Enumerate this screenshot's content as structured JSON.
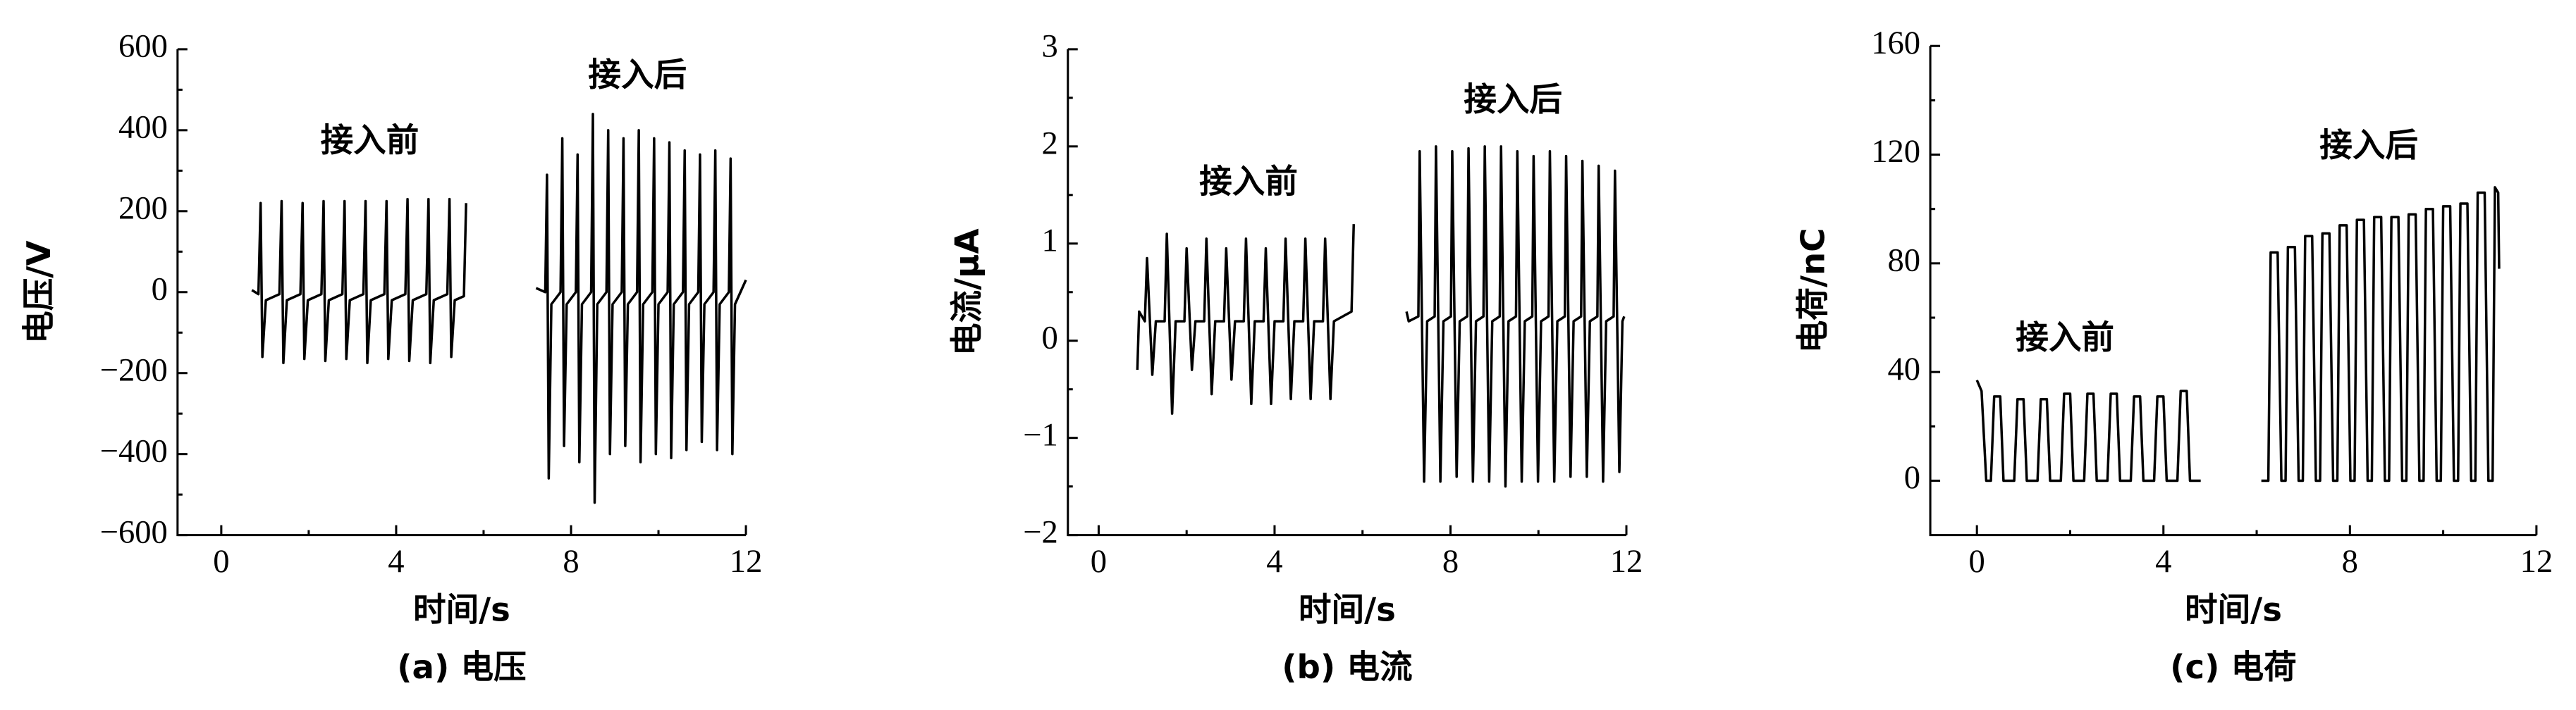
{
  "chart_data": [
    {
      "type": "line",
      "caption": "(a) 电压",
      "xlabel": "时间/s",
      "ylabel": "电压/V",
      "annotations": [
        "接入前",
        "接入后"
      ],
      "color": "#000000",
      "xlim": [
        -1,
        12
      ],
      "xticks": [
        0,
        4,
        8,
        12
      ],
      "ylim": [
        -600,
        600
      ],
      "yticks": [
        {
          "value": -600,
          "label": "−600"
        },
        {
          "value": -400,
          "label": "−400"
        },
        {
          "value": -200,
          "label": "−200"
        },
        0,
        200,
        400,
        600
      ],
      "x": [
        0.7,
        0.85,
        0.9,
        0.94,
        1.02,
        1.33,
        1.38,
        1.42,
        1.5,
        1.81,
        1.86,
        1.9,
        1.98,
        2.29,
        2.34,
        2.38,
        2.46,
        2.77,
        2.82,
        2.86,
        2.94,
        3.25,
        3.3,
        3.34,
        3.42,
        3.73,
        3.78,
        3.82,
        3.9,
        4.21,
        4.26,
        4.3,
        4.38,
        4.69,
        4.74,
        4.78,
        4.86,
        5.17,
        5.22,
        5.26,
        5.34,
        5.55,
        5.6,
        6.4,
        7.2,
        7.41,
        7.45,
        7.49,
        7.55,
        7.76,
        7.8,
        7.84,
        7.9,
        8.11,
        8.15,
        8.19,
        8.25,
        8.46,
        8.5,
        8.54,
        8.6,
        8.81,
        8.85,
        8.89,
        8.95,
        9.16,
        9.2,
        9.24,
        9.3,
        9.51,
        9.55,
        9.59,
        9.65,
        9.86,
        9.9,
        9.94,
        10,
        10.21,
        10.25,
        10.29,
        10.35,
        10.56,
        10.6,
        10.64,
        10.7,
        10.91,
        10.95,
        10.99,
        11.05,
        11.26,
        11.3,
        11.34,
        11.4,
        11.61,
        11.65,
        11.69,
        11.75,
        12
      ],
      "values": [
        5,
        -5,
        220,
        -160,
        -20,
        -5,
        225,
        -175,
        -20,
        -5,
        220,
        -165,
        -20,
        -5,
        225,
        -170,
        -20,
        -5,
        225,
        -165,
        -20,
        -5,
        225,
        -175,
        -20,
        -5,
        225,
        -165,
        -20,
        -5,
        230,
        -170,
        -20,
        -5,
        230,
        -175,
        -20,
        -5,
        230,
        -160,
        -20,
        -10,
        220,
        null,
        10,
        0,
        290,
        -460,
        -30,
        0,
        380,
        -380,
        -30,
        0,
        340,
        -420,
        -30,
        0,
        440,
        -520,
        -30,
        0,
        400,
        -400,
        -30,
        0,
        380,
        -380,
        -30,
        0,
        400,
        -420,
        -30,
        0,
        380,
        -400,
        -30,
        0,
        370,
        -410,
        -30,
        0,
        350,
        -390,
        -30,
        0,
        340,
        -370,
        -30,
        0,
        350,
        -390,
        -30,
        0,
        330,
        -400,
        -30,
        30
      ]
    },
    {
      "type": "line",
      "caption": "(b) 电流",
      "xlabel": "时间/s",
      "ylabel": "电流/μA",
      "annotations": [
        "接入前",
        "接入后"
      ],
      "color": "#000000",
      "xlim": [
        -0.7,
        12
      ],
      "xticks": [
        0,
        4,
        8,
        12
      ],
      "ylim": [
        -2,
        3
      ],
      "yticks": [
        {
          "value": -2,
          "label": "−2"
        },
        {
          "value": -1,
          "label": "−1"
        },
        0,
        1,
        2,
        3
      ],
      "x": [
        0.88,
        0.92,
        1.05,
        1.1,
        1.22,
        1.3,
        1.5,
        1.55,
        1.67,
        1.75,
        1.95,
        2,
        2.12,
        2.2,
        2.4,
        2.45,
        2.57,
        2.65,
        2.85,
        2.9,
        3.02,
        3.1,
        3.3,
        3.35,
        3.47,
        3.55,
        3.75,
        3.8,
        3.92,
        4,
        4.2,
        4.25,
        4.37,
        4.45,
        4.65,
        4.7,
        4.82,
        4.9,
        5.1,
        5.15,
        5.27,
        5.35,
        5.55,
        5.75,
        5.8,
        6.4,
        7,
        7.05,
        7.27,
        7.3,
        7.4,
        7.47,
        7.64,
        7.67,
        7.77,
        7.84,
        8.01,
        8.04,
        8.14,
        8.21,
        8.38,
        8.41,
        8.51,
        8.58,
        8.75,
        8.78,
        8.88,
        8.95,
        9.12,
        9.15,
        9.25,
        9.32,
        9.49,
        9.52,
        9.62,
        9.69,
        9.86,
        9.89,
        9.99,
        10.06,
        10.23,
        10.26,
        10.36,
        10.43,
        10.6,
        10.63,
        10.73,
        10.8,
        10.97,
        11,
        11.1,
        11.17,
        11.34,
        11.37,
        11.47,
        11.54,
        11.71,
        11.74,
        11.84,
        11.91,
        11.95
      ],
      "values": [
        -0.3,
        0.3,
        0.2,
        0.85,
        -0.35,
        0.2,
        0.2,
        1.1,
        -0.75,
        0.2,
        0.2,
        0.95,
        -0.3,
        0.2,
        0.2,
        1.05,
        -0.55,
        0.2,
        0.2,
        0.95,
        -0.4,
        0.2,
        0.2,
        1.05,
        -0.65,
        0.2,
        0.2,
        0.95,
        -0.65,
        0.2,
        0.2,
        1.05,
        -0.6,
        0.2,
        0.2,
        1.05,
        -0.6,
        0.2,
        0.2,
        1.05,
        -0.6,
        0.2,
        0.25,
        0.3,
        1.2,
        null,
        0.3,
        0.2,
        0.25,
        1.95,
        -1.45,
        0.2,
        0.25,
        2,
        -1.45,
        0.2,
        0.25,
        1.95,
        -1.4,
        0.2,
        0.25,
        1.98,
        -1.45,
        0.2,
        0.25,
        2,
        -1.45,
        0.2,
        0.25,
        2,
        -1.5,
        0.2,
        0.25,
        1.95,
        -1.45,
        0.2,
        0.25,
        1.9,
        -1.45,
        0.2,
        0.25,
        1.95,
        -1.45,
        0.2,
        0.25,
        1.9,
        -1.4,
        0.2,
        0.25,
        1.85,
        -1.4,
        0.2,
        0.25,
        1.8,
        -1.45,
        0.2,
        0.25,
        1.75,
        -1.35,
        0.2,
        0.25
      ]
    },
    {
      "type": "line",
      "caption": "(c) 电荷",
      "xlabel": "时间/s",
      "ylabel": "电荷/nC",
      "annotations": [
        "接入前",
        "接入后"
      ],
      "color": "#000000",
      "xlim": [
        -1,
        12
      ],
      "xticks": [
        0,
        4,
        8,
        12
      ],
      "ylim": [
        -20,
        160
      ],
      "yticks": [
        0,
        40,
        80,
        120,
        160
      ],
      "x": [
        0,
        0.1,
        0.2,
        0.3,
        0.37,
        0.5,
        0.57,
        0.8,
        0.87,
        1,
        1.07,
        1.3,
        1.37,
        1.5,
        1.57,
        1.8,
        1.87,
        2,
        2.07,
        2.3,
        2.37,
        2.5,
        2.57,
        2.8,
        2.87,
        3,
        3.07,
        3.3,
        3.37,
        3.5,
        3.57,
        3.8,
        3.87,
        4,
        4.07,
        4.3,
        4.37,
        4.5,
        4.57,
        4.8,
        5.5,
        6.1,
        6.2,
        6.25,
        6.3,
        6.45,
        6.53,
        6.62,
        6.67,
        6.82,
        6.9,
        6.99,
        7.04,
        7.19,
        7.27,
        7.36,
        7.41,
        7.56,
        7.64,
        7.73,
        7.78,
        7.93,
        8.01,
        8.1,
        8.15,
        8.3,
        8.38,
        8.47,
        8.52,
        8.67,
        8.75,
        8.84,
        8.89,
        9.04,
        9.12,
        9.21,
        9.26,
        9.41,
        9.49,
        9.58,
        9.63,
        9.78,
        9.86,
        9.95,
        10,
        10.15,
        10.23,
        10.32,
        10.37,
        10.52,
        10.6,
        10.69,
        10.74,
        10.89,
        10.97,
        11.06,
        11.11,
        11.18,
        11.2
      ],
      "values": [
        37,
        33,
        0,
        0,
        31,
        31,
        0,
        0,
        30,
        30,
        0,
        0,
        30,
        30,
        0,
        0,
        32,
        32,
        0,
        0,
        32,
        32,
        0,
        0,
        32,
        32,
        0,
        0,
        31,
        31,
        0,
        0,
        31,
        31,
        0,
        0,
        33,
        33,
        0,
        0,
        null,
        0,
        0,
        0,
        84,
        84,
        0,
        0,
        86,
        86,
        0,
        0,
        90,
        90,
        0,
        0,
        91,
        91,
        0,
        0,
        94,
        94,
        0,
        0,
        96,
        96,
        0,
        0,
        97,
        97,
        0,
        0,
        97,
        97,
        0,
        0,
        98,
        98,
        0,
        0,
        100,
        100,
        0,
        0,
        101,
        101,
        0,
        0,
        102,
        102,
        0,
        0,
        106,
        106,
        0,
        0,
        108,
        106,
        78
      ]
    }
  ]
}
